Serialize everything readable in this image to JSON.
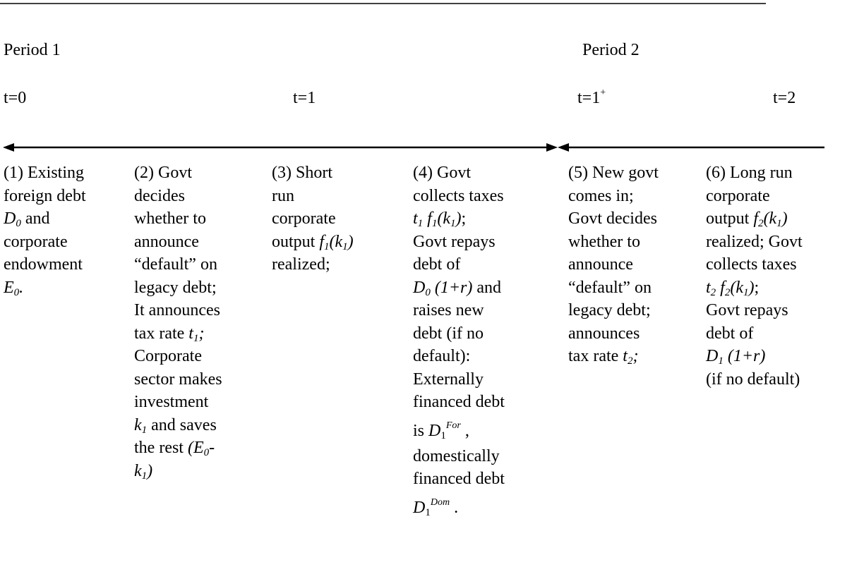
{
  "periods": [
    "Period 1",
    "Period 2"
  ],
  "times": [
    [
      "t=0"
    ],
    [
      "t=1"
    ],
    [
      "t=1",
      {
        "t": "+",
        "s": "sup"
      }
    ],
    [
      "t=2"
    ]
  ],
  "columns": [
    {
      "lines": [
        [
          "(1) Existing"
        ],
        [
          "foreign debt"
        ],
        [
          {
            "t": "D",
            "s": "i"
          },
          {
            "t": "0",
            "s": "isub"
          },
          " and"
        ],
        [
          "corporate"
        ],
        [
          "endowment"
        ],
        [
          {
            "t": "E",
            "s": "i"
          },
          {
            "t": "0",
            "s": "isub"
          },
          {
            "t": ".",
            "s": "i"
          }
        ]
      ]
    },
    {
      "lines": [
        [
          "(2) Govt"
        ],
        [
          "decides"
        ],
        [
          "whether to"
        ],
        [
          "announce"
        ],
        [
          "“default” on"
        ],
        [
          "legacy debt;"
        ],
        [
          "It announces"
        ],
        [
          "tax rate ",
          {
            "t": "t",
            "s": "i"
          },
          {
            "t": "1",
            "s": "isub"
          },
          {
            "t": ";",
            "s": "i"
          }
        ],
        [
          "Corporate"
        ],
        [
          "sector makes"
        ],
        [
          "investment"
        ],
        [
          {
            "t": "k",
            "s": "i"
          },
          {
            "t": "1",
            "s": "isub"
          },
          " and saves"
        ],
        [
          "the rest ",
          {
            "t": "(E",
            "s": "i"
          },
          {
            "t": "0",
            "s": "isub"
          },
          {
            "t": "-",
            "s": "i"
          }
        ],
        [
          {
            "t": "k",
            "s": "i"
          },
          {
            "t": "1",
            "s": "isub"
          },
          {
            "t": ")",
            "s": "i"
          }
        ]
      ]
    },
    {
      "lines": [
        [
          "(3) Short"
        ],
        [
          "run"
        ],
        [
          "corporate"
        ],
        [
          "output ",
          {
            "t": "f",
            "s": "i"
          },
          {
            "t": "1",
            "s": "isub"
          },
          {
            "t": "(k",
            "s": "i"
          },
          {
            "t": "1",
            "s": "isub"
          },
          {
            "t": ")",
            "s": "i"
          }
        ],
        [
          "realized;"
        ]
      ]
    },
    {
      "lines": [
        [
          "(4) Govt"
        ],
        [
          "collects taxes"
        ],
        [
          {
            "t": "t",
            "s": "i"
          },
          {
            "t": "1",
            "s": "isub"
          },
          {
            "t": " f",
            "s": "i"
          },
          {
            "t": "1",
            "s": "isub"
          },
          {
            "t": "(k",
            "s": "i"
          },
          {
            "t": "1",
            "s": "isub"
          },
          {
            "t": ")",
            "s": "i"
          },
          ";"
        ],
        [
          "Govt repays"
        ],
        [
          "debt of"
        ],
        [
          {
            "t": "D",
            "s": "i"
          },
          {
            "t": "0",
            "s": "isub"
          },
          {
            "t": " (1+r)",
            "s": "i"
          },
          " and"
        ],
        [
          "raises new"
        ],
        [
          "debt (if no"
        ],
        [
          "default):"
        ],
        [
          "Externally"
        ],
        [
          "financed debt"
        ],
        [
          "is  ",
          {
            "t": "D",
            "s": "i"
          },
          {
            "t": "1",
            "s": "sub"
          },
          {
            "t": "For",
            "s": "isup"
          },
          " ,"
        ],
        [
          "domestically"
        ],
        [
          "financed debt"
        ],
        [
          {
            "t": "D",
            "s": "i"
          },
          {
            "t": "1",
            "s": "sub"
          },
          {
            "t": "Dom",
            "s": "isup"
          },
          " ."
        ]
      ]
    },
    {
      "lines": [
        [
          "(5) New govt"
        ],
        [
          "comes in;"
        ],
        [
          "Govt decides"
        ],
        [
          "whether to"
        ],
        [
          "announce"
        ],
        [
          "“default” on"
        ],
        [
          "legacy debt;"
        ],
        [
          "announces"
        ],
        [
          "tax rate ",
          {
            "t": "t",
            "s": "i"
          },
          {
            "t": "2",
            "s": "isub"
          },
          {
            "t": ";",
            "s": "i"
          }
        ]
      ]
    },
    {
      "lines": [
        [
          "(6) Long run"
        ],
        [
          "corporate"
        ],
        [
          "output ",
          {
            "t": "f",
            "s": "i"
          },
          {
            "t": "2",
            "s": "isub"
          },
          {
            "t": "(k",
            "s": "i"
          },
          {
            "t": "1",
            "s": "isub"
          },
          {
            "t": ")",
            "s": "i"
          }
        ],
        [
          "realized; Govt"
        ],
        [
          "collects taxes"
        ],
        [
          {
            "t": "t",
            "s": "i"
          },
          {
            "t": "2",
            "s": "isub"
          },
          {
            "t": " f",
            "s": "i"
          },
          {
            "t": "2",
            "s": "isub"
          },
          {
            "t": "(k",
            "s": "i"
          },
          {
            "t": "1",
            "s": "isub"
          },
          {
            "t": ")",
            "s": "i"
          },
          ";"
        ],
        [
          "Govt repays"
        ],
        [
          "debt of"
        ],
        [
          {
            "t": "D",
            "s": "i"
          },
          {
            "t": "1",
            "s": "isub"
          },
          {
            "t": " (1+r)",
            "s": "i"
          }
        ],
        [
          "(if no default)"
        ]
      ]
    }
  ]
}
